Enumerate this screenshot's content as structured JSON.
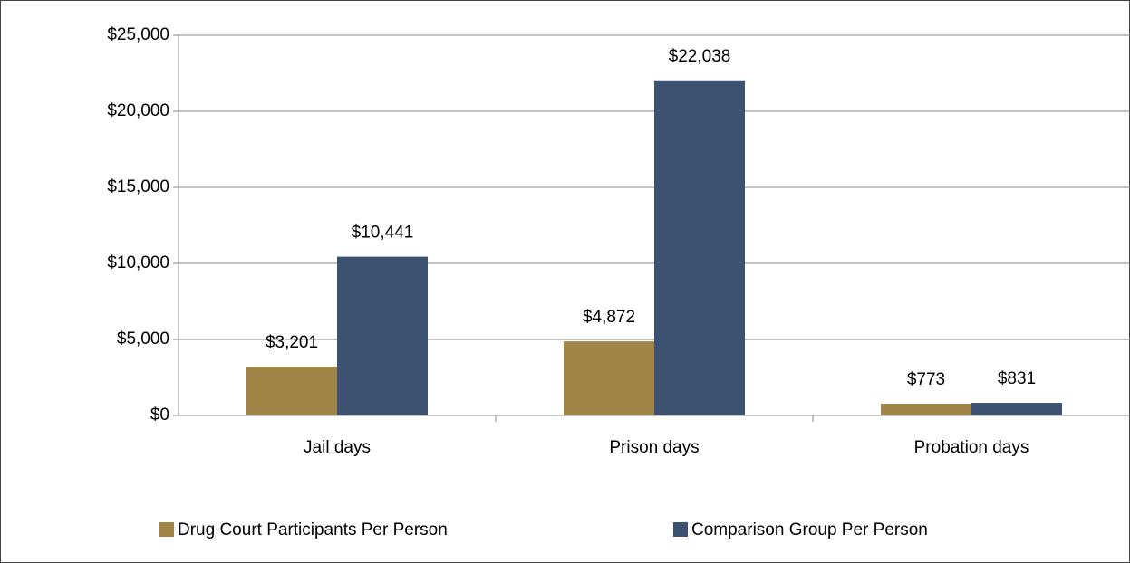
{
  "chart_data": {
    "type": "bar",
    "categories": [
      "Jail days",
      "Prison days",
      "Probation days"
    ],
    "series": [
      {
        "name": "Drug Court Participants Per Person",
        "color": "#a08448",
        "values": [
          3201,
          4872,
          773
        ],
        "value_labels": [
          "$3,201",
          "$4,872",
          "$773"
        ]
      },
      {
        "name": "Comparison Group Per Person",
        "color": "#3c5270",
        "values": [
          10441,
          22038,
          831
        ],
        "value_labels": [
          "$10,441",
          "$22,038",
          "$831"
        ]
      }
    ],
    "ylim": [
      0,
      25000
    ],
    "yticks": [
      {
        "value": 0,
        "label": "$0"
      },
      {
        "value": 5000,
        "label": "$5,000"
      },
      {
        "value": 10000,
        "label": "$10,000"
      },
      {
        "value": 15000,
        "label": "$15,000"
      },
      {
        "value": 20000,
        "label": "$20,000"
      },
      {
        "value": 25000,
        "label": "$25,000"
      }
    ],
    "grid": true,
    "legend": "bottom"
  }
}
